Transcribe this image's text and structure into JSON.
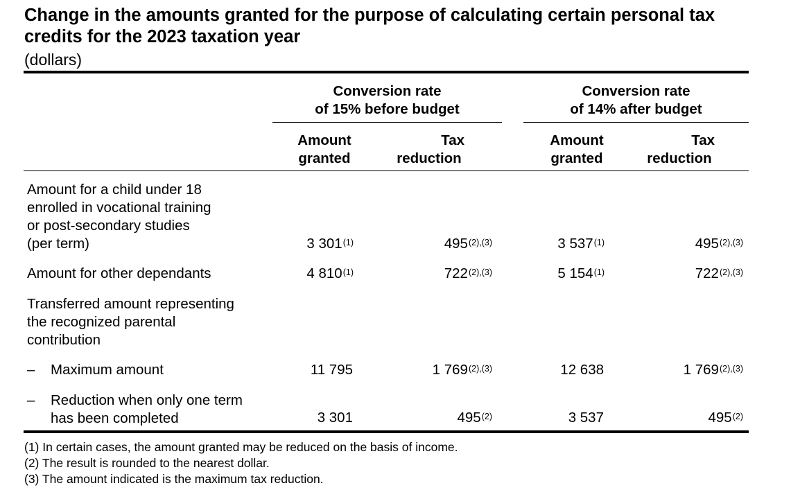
{
  "title": "Change in the amounts granted for the purpose of calculating certain personal tax credits for the 2023 taxation year",
  "subtitle": "(dollars)",
  "header": {
    "group1": [
      "Conversion rate",
      "of 15% before budget"
    ],
    "group2": [
      "Conversion rate",
      "of 14% after budget"
    ],
    "amount_granted": [
      "Amount",
      "granted"
    ],
    "tax_reduction": [
      "Tax",
      "reduction"
    ]
  },
  "rows": [
    {
      "label_lines": [
        "Amount for a child under 18",
        "enrolled in vocational training",
        "or post-secondary studies",
        "(per term)"
      ],
      "before_amount": "3 301",
      "before_amount_note": "(1)",
      "before_tax": "495",
      "before_tax_note": "(2),(3)",
      "after_amount": "3 537",
      "after_amount_note": "(1)",
      "after_tax": "495",
      "after_tax_note": "(2),(3)"
    },
    {
      "label_lines": [
        "Amount for other dependants"
      ],
      "before_amount": "4 810",
      "before_amount_note": "(1)",
      "before_tax": "722",
      "before_tax_note": "(2),(3)",
      "after_amount": "5 154",
      "after_amount_note": "(1)",
      "after_tax": "722",
      "after_tax_note": "(2),(3)"
    },
    {
      "label_lines": [
        "Transferred amount representing",
        "the recognized parental",
        "contribution"
      ]
    },
    {
      "dash": "–",
      "label_lines": [
        "Maximum amount"
      ],
      "before_amount": "11 795",
      "before_amount_note": "",
      "before_tax": "1 769",
      "before_tax_note": "(2),(3)",
      "after_amount": "12 638",
      "after_amount_note": "",
      "after_tax": "1 769",
      "after_tax_note": "(2),(3)"
    },
    {
      "dash": "–",
      "label_lines": [
        "Reduction when only one term",
        "has been completed"
      ],
      "before_amount": "3 301",
      "before_amount_note": "",
      "before_tax": "495",
      "before_tax_note": "(2)",
      "after_amount": "3 537",
      "after_amount_note": "",
      "after_tax": "495",
      "after_tax_note": "(2)"
    }
  ],
  "notes": [
    "(1) In certain cases, the amount granted may be reduced on the basis of income.",
    "(2) The result is rounded to the nearest dollar.",
    "(3) The amount indicated is the maximum tax reduction."
  ]
}
